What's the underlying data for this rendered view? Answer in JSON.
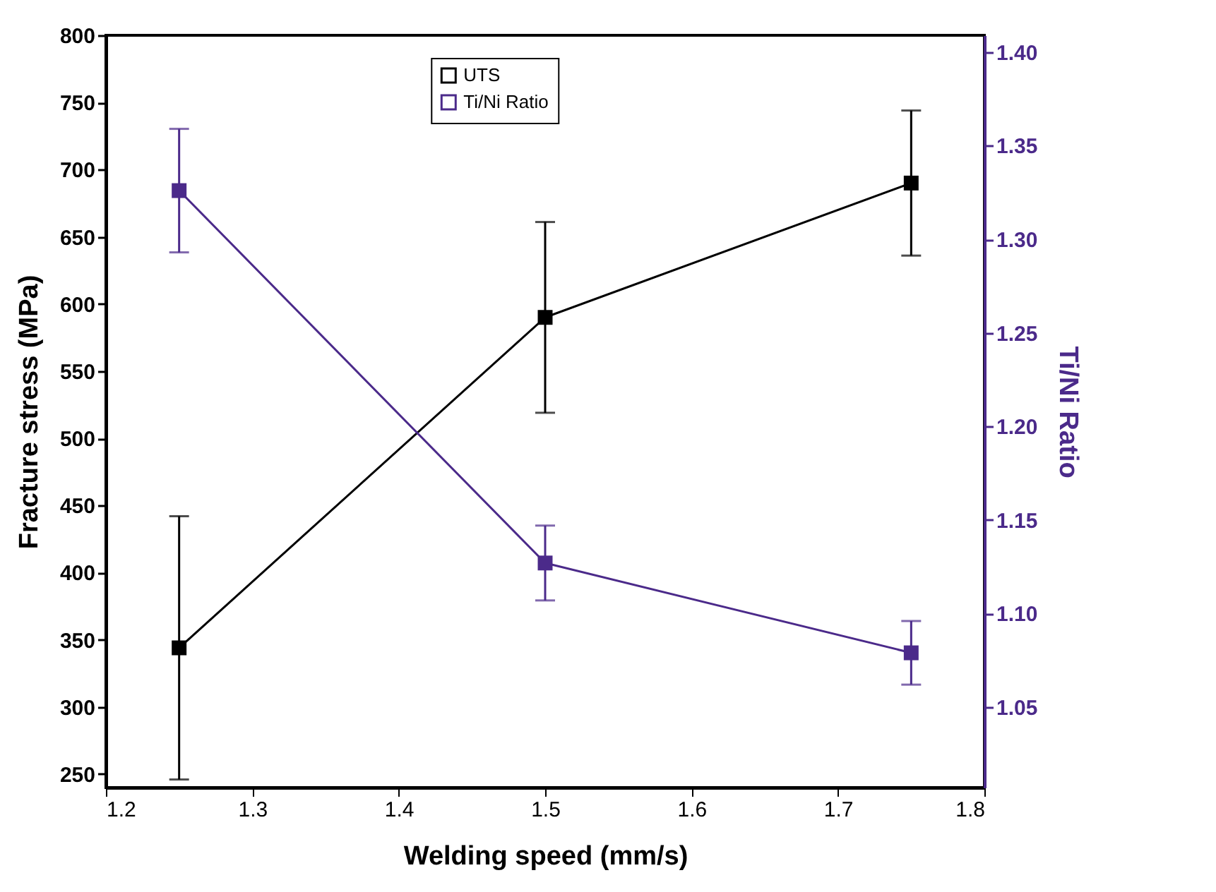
{
  "chart_data": {
    "type": "line",
    "xlabel": "Welding speed (mm/s)",
    "ylabel": "Fracture stress (MPa)",
    "y2label": "Ti/Ni Ratio",
    "x": [
      1.25,
      1.5,
      1.75
    ],
    "series": [
      {
        "name": "UTS",
        "color": "#000000",
        "values": [
          344,
          590,
          690
        ],
        "errors": [
          98,
          71,
          54
        ]
      },
      {
        "name": "Ti/Ni Ratio",
        "color": "#4b2a8a",
        "axis": "y2",
        "values": [
          1.326,
          1.127,
          1.079
        ],
        "errors": [
          0.033,
          0.02,
          0.017
        ]
      }
    ],
    "xlim": [
      1.2,
      1.8
    ],
    "xticks": [
      1.2,
      1.3,
      1.4,
      1.5,
      1.6,
      1.7,
      1.8
    ],
    "ylim": [
      240,
      800
    ],
    "yticks": [
      250,
      300,
      350,
      400,
      450,
      500,
      550,
      600,
      650,
      700,
      750,
      800
    ],
    "y2lim": [
      1.007,
      1.409
    ],
    "y2ticks": [
      1.05,
      {
        "value": 1.1,
        "label": "1.10"
      },
      1.15,
      {
        "value": 1.2,
        "label": "1.20"
      },
      1.25,
      {
        "value": 1.3,
        "label": "1.30"
      },
      1.35,
      {
        "value": 1.4,
        "label": "1.40"
      }
    ],
    "legend": "top",
    "marker": "square",
    "line_style": "solid",
    "grid": false
  }
}
